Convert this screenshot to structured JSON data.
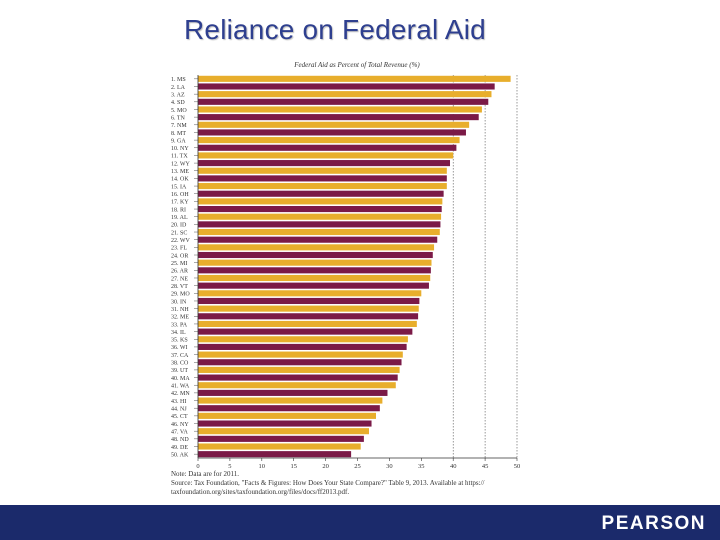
{
  "slide": {
    "title": "Reliance on Federal Aid",
    "logo": "PEARSON"
  },
  "colors": {
    "title": "#2e3f8f",
    "bar_primary": "#e8ae2c",
    "bar_secondary": "#7b1a47",
    "footer": "#1b2a6b"
  },
  "notes": {
    "line1": "Note: Data are for 2011.",
    "line2": "Source: Tax Foundation, \"Facts & Figures: How Does Your State Compare?\" Table 9, 2013. Available at https://",
    "line3": "taxfoundation.org/sites/taxfoundation.org/files/docs/ff2013.pdf."
  },
  "chart_data": {
    "type": "bar",
    "orientation": "horizontal",
    "title": "Federal Aid as Percent of Total Revenue (%)",
    "xlim": [
      0,
      50
    ],
    "xticks": [
      0,
      5,
      10,
      15,
      20,
      25,
      30,
      35,
      40,
      45,
      50
    ],
    "grid": "dashed vertical lines at 40, 45, 50",
    "categories": [
      "1. MS",
      "2. LA",
      "3. AZ",
      "4. SD",
      "5. MO",
      "6. TN",
      "7. NM",
      "8. MT",
      "9. GA",
      "10. NY",
      "11. TX",
      "12. WY",
      "13. ME",
      "14. OK",
      "15. IA",
      "16. OH",
      "17. KY",
      "18. RI",
      "19. AL",
      "20. ID",
      "21. SC",
      "22. WV",
      "23. FL",
      "24. OR",
      "25. MI",
      "26. AR",
      "27. NE",
      "28. VT",
      "29. MO",
      "30. IN",
      "31. NH",
      "32. ME",
      "33. PA",
      "34. IL",
      "35. KS",
      "36. WI",
      "37. CA",
      "38. CO",
      "39. UT",
      "40. MA",
      "41. WA",
      "42. MN",
      "43. HI",
      "44. NJ",
      "45. CT",
      "46. NY",
      "47. VA",
      "48. ND",
      "49. DE",
      "50. AK"
    ],
    "values": [
      49.0,
      46.5,
      46.0,
      45.5,
      44.5,
      44.0,
      42.5,
      42.0,
      41.0,
      40.5,
      40.0,
      39.5,
      39.0,
      39.0,
      39.0,
      38.5,
      38.3,
      38.2,
      38.1,
      38.0,
      37.9,
      37.5,
      37.0,
      36.8,
      36.6,
      36.5,
      36.4,
      36.2,
      35.0,
      34.7,
      34.6,
      34.5,
      34.3,
      33.6,
      32.9,
      32.7,
      32.1,
      31.9,
      31.6,
      31.3,
      31.0,
      29.7,
      28.9,
      28.5,
      27.9,
      27.2,
      26.8,
      26.0,
      25.5,
      24.0
    ]
  }
}
